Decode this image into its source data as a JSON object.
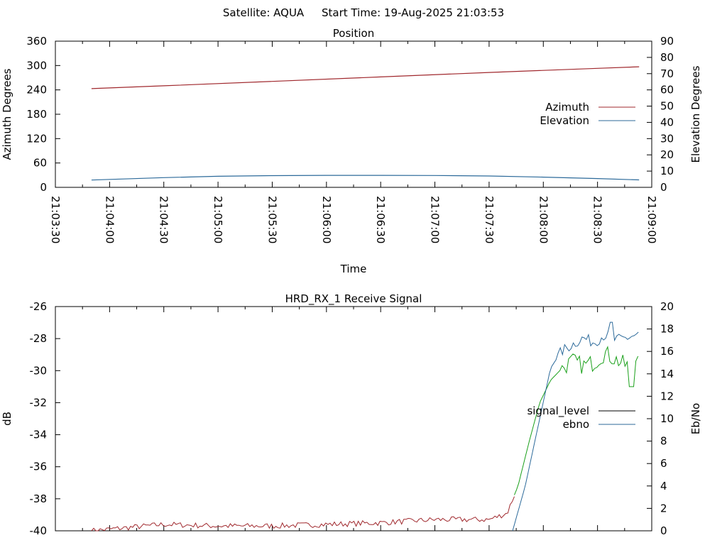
{
  "header": {
    "satellite": "Satellite: AQUA",
    "start_time": "Start Time: 19-Aug-2025 21:03:53"
  },
  "chart_data": [
    {
      "type": "line",
      "title": "Position",
      "xlabel": "Time",
      "ylabel": "Azimuth Degrees",
      "y2label": "Elevation Degrees",
      "x_ticks": [
        "21:03:30",
        "21:04:00",
        "21:04:30",
        "21:05:00",
        "21:05:30",
        "21:06:00",
        "21:06:30",
        "21:07:00",
        "21:07:30",
        "21:08:00",
        "21:08:30",
        "21:09:00"
      ],
      "y_ticks": [
        "0",
        "60",
        "120",
        "180",
        "240",
        "300",
        "360"
      ],
      "y2_ticks": [
        "0",
        "10",
        "20",
        "30",
        "40",
        "50",
        "60",
        "70",
        "80",
        "90"
      ],
      "ylim": [
        0,
        360
      ],
      "y2lim": [
        0,
        90
      ],
      "grid": false,
      "legend_position": "right",
      "colors": {
        "azimuth": "#a0282d",
        "elevation": "#2c6a9a"
      },
      "series": [
        {
          "name": "Azimuth",
          "axis": "left",
          "x": [
            "21:03:50",
            "21:04:30",
            "21:05:30",
            "21:06:30",
            "21:07:30",
            "21:08:30",
            "21:08:53"
          ],
          "values": [
            243,
            250,
            261,
            272,
            283,
            293,
            297
          ]
        },
        {
          "name": "Elevation",
          "axis": "right",
          "x": [
            "21:03:50",
            "21:04:30",
            "21:05:00",
            "21:05:30",
            "21:06:00",
            "21:06:30",
            "21:07:00",
            "21:07:30",
            "21:08:00",
            "21:08:30",
            "21:08:53"
          ],
          "values": [
            4.5,
            6.0,
            6.8,
            7.2,
            7.4,
            7.4,
            7.3,
            7.0,
            6.3,
            5.4,
            4.6
          ]
        }
      ]
    },
    {
      "type": "line",
      "title": "HRD_RX_1 Receive Signal",
      "xlabel": "",
      "ylabel": "dB",
      "y2label": "Eb/No",
      "y_ticks": [
        "-40",
        "-38",
        "-36",
        "-34",
        "-32",
        "-30",
        "-28",
        "-26"
      ],
      "y2_ticks": [
        "0",
        "2",
        "4",
        "6",
        "8",
        "10",
        "12",
        "14",
        "16",
        "18",
        "20"
      ],
      "ylim": [
        -40,
        -26
      ],
      "y2lim": [
        0,
        20
      ],
      "grid": false,
      "legend_position": "right",
      "colors": {
        "signal_level": "#000000",
        "ebno": "#2c6a9a",
        "lock_trace": "#a0282d",
        "green_trace": "#1aa01a"
      },
      "series": [
        {
          "name": "signal_level",
          "axis": "left",
          "x": [
            "21:03:50",
            "21:04:30",
            "21:05:00",
            "21:05:30",
            "21:06:00",
            "21:06:30",
            "21:07:00",
            "21:07:30",
            "21:07:40",
            "21:07:46",
            "21:07:52",
            "21:07:58",
            "21:08:04",
            "21:08:10",
            "21:08:16",
            "21:08:22",
            "21:08:28",
            "21:08:34",
            "21:08:40",
            "21:08:46",
            "21:08:52"
          ],
          "values": [
            -40.0,
            -39.6,
            -39.7,
            -39.7,
            -39.6,
            -39.5,
            -39.3,
            -39.3,
            -38.9,
            -37.2,
            -34.5,
            -32.0,
            -30.6,
            -29.9,
            -29.4,
            -29.7,
            -29.5,
            -28.9,
            -29.3,
            -29.7,
            -28.8
          ]
        },
        {
          "name": "ebno",
          "axis": "right",
          "x": [
            "21:07:43",
            "21:07:50",
            "21:07:58",
            "21:08:04",
            "21:08:10",
            "21:08:16",
            "21:08:22",
            "21:08:28",
            "21:08:34",
            "21:08:40",
            "21:08:46",
            "21:08:52"
          ],
          "values": [
            0,
            4.0,
            10.0,
            14.5,
            16.0,
            16.6,
            17.2,
            16.8,
            17.5,
            17.0,
            17.2,
            17.5
          ]
        }
      ]
    }
  ]
}
